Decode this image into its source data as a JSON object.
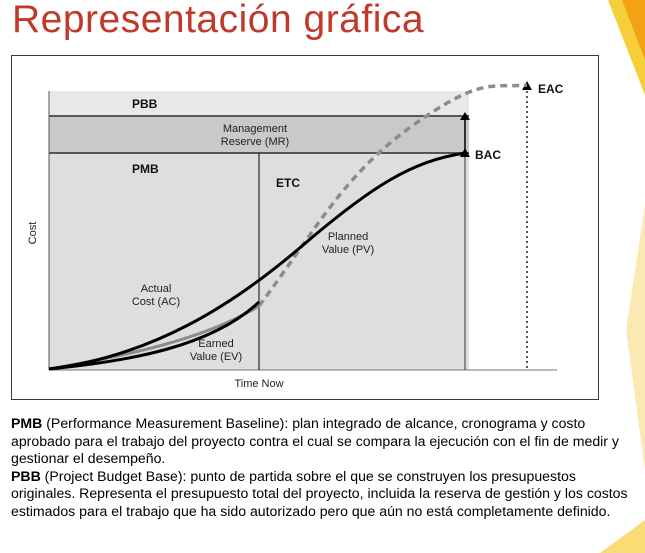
{
  "slide": {
    "title": "Representación gráfica"
  },
  "diagram": {
    "bands": {
      "pbb": "PBB",
      "mr_line1": "Management",
      "mr_line2": "Reserve (MR)",
      "pmb": "PMB"
    },
    "markers": {
      "eac": "EAC",
      "bac": "BAC",
      "etc": "ETC"
    },
    "axis": {
      "y_label": "Cost",
      "x_label": "Time Now"
    },
    "curves": {
      "pv_line1": "Planned",
      "pv_line2": "Value (PV)",
      "ac_line1": "Actual",
      "ac_line2": "Cost (AC)",
      "ev_line1": "Earned",
      "ev_line2": "Value (EV)"
    },
    "colors": {
      "title": "#c0392b",
      "accent_yellow": "#f5c518",
      "pbb_band": "#e8e8e8",
      "mr_band": "#c9c9c9",
      "pmb_band": "#dedede",
      "actual_cost": "#8c8c8c",
      "planned_value": "#000000"
    }
  },
  "description": {
    "pmb_term": "PMB",
    "pmb_text": " (Performance Measurement Baseline): plan integrado de alcance, cronograma y costo aprobado para el trabajo del proyecto contra el cual se compara la ejecución con el fin de medir y gestionar el desempeño.",
    "pbb_term": "PBB",
    "pbb_text": " (Project Budget Base): punto de partida sobre el que se construyen los presupuestos originales. Representa el presupuesto total del proyecto, incluida la reserva de gestión y los costos estimados para el trabajo que ha sido autorizado pero que aún no está completamente definido."
  }
}
